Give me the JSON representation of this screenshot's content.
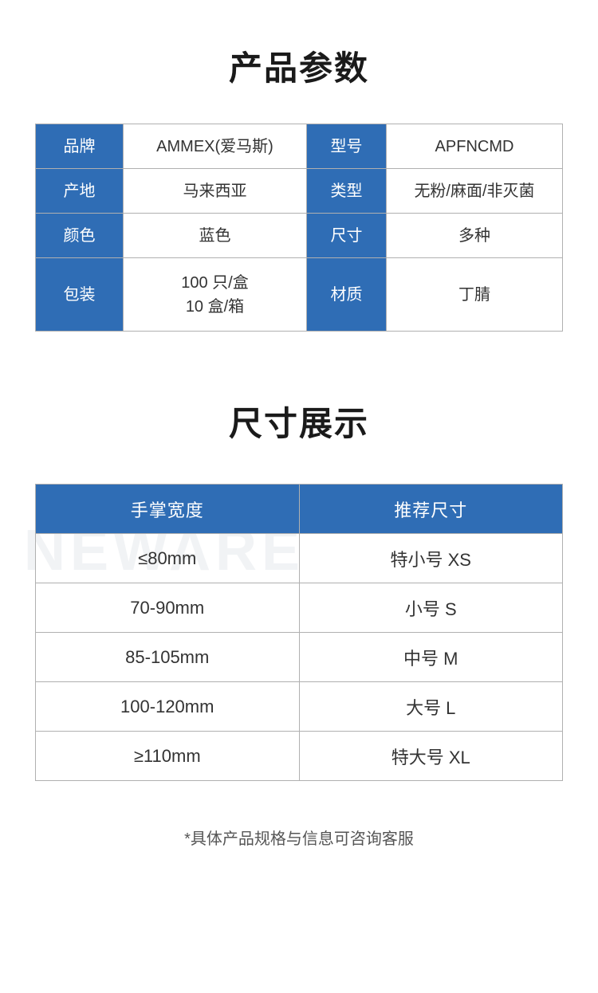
{
  "colors": {
    "header_bg": "#2f6db5",
    "header_text": "#ffffff",
    "border": "#b0b0b0",
    "text": "#333333",
    "bg": "#ffffff",
    "watermark": "#f1f3f5"
  },
  "sections": {
    "spec_title": "产品参数",
    "size_title": "尺寸展示"
  },
  "spec_table": {
    "rows": [
      {
        "label1": "品牌",
        "value1": "AMMEX(爱马斯)",
        "label2": "型号",
        "value2": "APFNCMD"
      },
      {
        "label1": "产地",
        "value1": "马来西亚",
        "label2": "类型",
        "value2": "无粉/麻面/非灭菌"
      },
      {
        "label1": "颜色",
        "value1": "蓝色",
        "label2": "尺寸",
        "value2": "多种"
      },
      {
        "label1": "包装",
        "value1_line1": "100 只/盒",
        "value1_line2": "10 盒/箱",
        "label2": "材质",
        "value2": "丁腈"
      }
    ]
  },
  "size_table": {
    "headers": {
      "col1": "手掌宽度",
      "col2": "推荐尺寸"
    },
    "rows": [
      {
        "width": "≤80mm",
        "size": "特小号 XS"
      },
      {
        "width": "70-90mm",
        "size": "小号 S"
      },
      {
        "width": "85-105mm",
        "size": "中号 M"
      },
      {
        "width": "100-120mm",
        "size": "大号 L"
      },
      {
        "width": "≥110mm",
        "size": "特大号 XL"
      }
    ]
  },
  "footnote": "*具体产品规格与信息可咨询客服",
  "watermark_text": "NEWARE"
}
